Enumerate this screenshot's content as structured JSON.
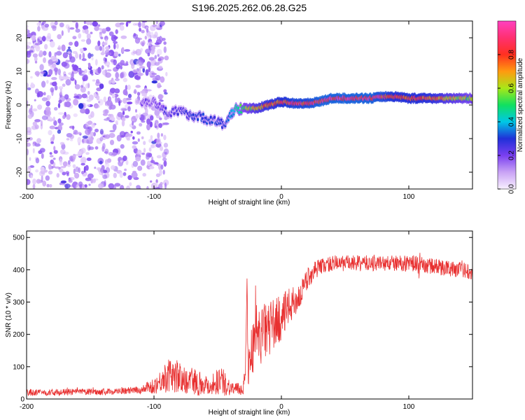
{
  "figure_title": "S196.2025.262.06.28.G25",
  "chart_data": [
    {
      "type": "heatmap",
      "xlabel": "Height of straight line (km)",
      "ylabel": "Frequency (Hz)",
      "xlim": [
        -200,
        150
      ],
      "ylim": [
        -25,
        25
      ],
      "xticks": [
        -200,
        -100,
        0,
        100
      ],
      "xtick_labels": [
        "-200",
        "-100",
        "0",
        "100"
      ],
      "yticks": [
        -20,
        -10,
        0,
        10,
        20
      ],
      "ytick_labels": [
        "-20",
        "-10",
        "0",
        "10",
        "20"
      ],
      "colorbar": {
        "label": "Normalized spectral amplitude",
        "range": [
          0,
          1
        ],
        "ticks": [
          0.0,
          0.2,
          0.4,
          0.6,
          0.8
        ],
        "tick_labels": [
          "0.0",
          "0.2",
          "0.4",
          "0.6",
          "0.8"
        ],
        "colors": [
          "#f8f0ff",
          "#c9a3f5",
          "#7a3ff0",
          "#2030d8",
          "#00c8e6",
          "#10e060",
          "#a8e818",
          "#ff9a10",
          "#ff3020",
          "#ff3070",
          "#ff40c0"
        ]
      },
      "ridge": {
        "x": [
          -100,
          -90,
          -80,
          -70,
          -60,
          -50,
          -45,
          -40,
          -35,
          -30,
          -20,
          -10,
          0,
          10,
          20,
          30,
          40,
          50,
          60,
          70,
          80,
          90,
          100,
          110,
          120,
          130,
          140,
          150
        ],
        "frequency": [
          1,
          -2,
          -2,
          -3,
          -4,
          -5,
          -6,
          -3,
          -1,
          -1,
          -1,
          0,
          1,
          0.5,
          0.5,
          1,
          2,
          2,
          2,
          2,
          2.5,
          2.5,
          2,
          2,
          2,
          2,
          2,
          2
        ],
        "amplitude": [
          0.2,
          0.25,
          0.25,
          0.3,
          0.3,
          0.3,
          0.3,
          0.35,
          0.45,
          0.55,
          0.7,
          0.8,
          0.85,
          0.9,
          0.9,
          0.95,
          0.95,
          0.95,
          0.95,
          0.95,
          0.9,
          0.85,
          0.85,
          0.85,
          0.8,
          0.7,
          0.65,
          0.6
        ]
      },
      "noise_region": {
        "x_from": -200,
        "x_to": -100,
        "frequency_range": [
          -25,
          25
        ],
        "amplitude": 0.15
      }
    },
    {
      "type": "line",
      "xlabel": "Height of straight line (km)",
      "ylabel": "SNR (10 * v/v)",
      "xlim": [
        -200,
        150
      ],
      "ylim": [
        0,
        520
      ],
      "xticks": [
        -200,
        -100,
        0,
        100
      ],
      "xtick_labels": [
        "-200",
        "-100",
        "0",
        "100"
      ],
      "yticks": [
        0,
        100,
        200,
        300,
        400,
        500
      ],
      "ytick_labels": [
        "0",
        "100",
        "200",
        "300",
        "400",
        "500"
      ],
      "series": [
        {
          "name": "SNR",
          "color": "#e83030",
          "x": [
            -200,
            -180,
            -160,
            -140,
            -120,
            -110,
            -100,
            -95,
            -90,
            -85,
            -80,
            -75,
            -70,
            -65,
            -60,
            -55,
            -50,
            -45,
            -40,
            -35,
            -30,
            -28,
            -27,
            -26,
            -25,
            -22,
            -20,
            -15,
            -10,
            -5,
            0,
            5,
            10,
            15,
            20,
            25,
            30,
            35,
            40,
            50,
            60,
            70,
            80,
            90,
            100,
            105,
            108,
            110,
            120,
            130,
            140,
            150
          ],
          "values": [
            20,
            20,
            22,
            22,
            25,
            28,
            40,
            55,
            70,
            75,
            65,
            55,
            60,
            50,
            45,
            40,
            60,
            50,
            35,
            30,
            30,
            120,
            350,
            60,
            140,
            160,
            180,
            200,
            220,
            235,
            250,
            280,
            300,
            320,
            370,
            395,
            410,
            415,
            420,
            420,
            420,
            420,
            420,
            420,
            420,
            420,
            410,
            415,
            410,
            405,
            400,
            395
          ],
          "noise_amplitude": [
            10,
            10,
            10,
            10,
            10,
            12,
            25,
            35,
            50,
            55,
            50,
            40,
            45,
            40,
            30,
            30,
            50,
            40,
            25,
            20,
            20,
            40,
            60,
            40,
            70,
            80,
            90,
            90,
            90,
            80,
            70,
            60,
            50,
            40,
            35,
            30,
            25,
            25,
            25,
            25,
            25,
            25,
            25,
            25,
            25,
            25,
            60,
            25,
            25,
            25,
            25,
            25
          ]
        }
      ]
    }
  ]
}
